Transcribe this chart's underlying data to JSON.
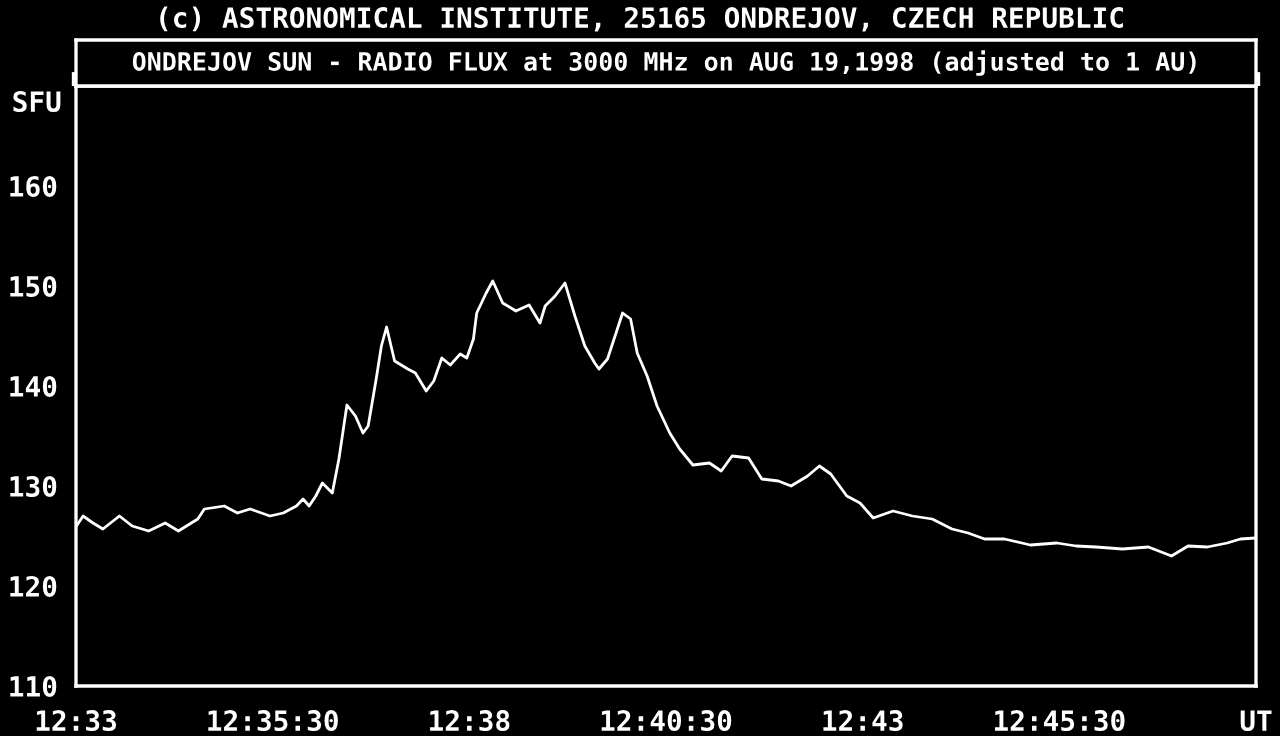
{
  "chart_data": {
    "type": "line",
    "title": "ONDREJOV SUN - RADIO FLUX at 3000 MHz on AUG 19,1998 (adjusted to 1 AU)",
    "annotations": [
      "(c) ASTRONOMICAL INSTITUTE, 25165 ONDREJOV, CZECH REPUBLIC"
    ],
    "ylabel": "SFU",
    "series": [
      {
        "color": "#ffffff",
        "x": [
          12.5501,
          12.5515,
          12.5536,
          12.5557,
          12.5592,
          12.5619,
          12.5654,
          12.5689,
          12.5717,
          12.5758,
          12.5772,
          12.5814,
          12.5842,
          12.5869,
          12.5911,
          12.5939,
          12.5967,
          12.5981,
          12.5994,
          12.6008,
          12.6022,
          12.6043,
          12.6057,
          12.6074,
          12.6092,
          12.6108,
          12.6119,
          12.6136,
          12.6147,
          12.6158,
          12.6175,
          12.6203,
          12.6219,
          12.6242,
          12.6258,
          12.6275,
          12.6293,
          12.6314,
          12.6328,
          12.6342,
          12.6349,
          12.6369,
          12.6383,
          12.6404,
          12.6432,
          12.646,
          12.6483,
          12.6494,
          12.6515,
          12.6536,
          12.6557,
          12.6578,
          12.6599,
          12.6608,
          12.6626,
          12.664,
          12.6658,
          12.6675,
          12.6689,
          12.671,
          12.6731,
          12.6758,
          12.6779,
          12.6807,
          12.6842,
          12.6867,
          12.689,
          12.6925,
          12.6953,
          12.6988,
          12.7015,
          12.705,
          12.7075,
          12.7099,
          12.7133,
          12.7161,
          12.7189,
          12.7231,
          12.7272,
          12.7314,
          12.7356,
          12.739,
          12.7425,
          12.7467,
          12.7522,
          12.7578,
          12.7619,
          12.7661,
          12.7717,
          12.7772,
          12.7821,
          12.7856,
          12.7897,
          12.7939,
          12.7967,
          12.7999
        ],
        "values": [
          126.0,
          127.0,
          126.3,
          125.7,
          127.0,
          126.0,
          125.5,
          126.3,
          125.5,
          126.7,
          127.7,
          128.0,
          127.3,
          127.7,
          127.0,
          127.3,
          128.0,
          128.7,
          128.0,
          129.0,
          130.3,
          129.3,
          132.7,
          138.1,
          137.0,
          135.3,
          136.0,
          140.7,
          144.0,
          145.9,
          142.5,
          141.7,
          141.3,
          139.5,
          140.5,
          142.8,
          142.1,
          143.2,
          142.8,
          144.7,
          147.3,
          149.3,
          150.5,
          148.3,
          147.5,
          148.1,
          146.3,
          148.0,
          149.0,
          150.3,
          147.0,
          144.0,
          142.3,
          141.7,
          142.7,
          144.7,
          147.3,
          146.7,
          143.3,
          141.0,
          138.0,
          135.3,
          133.7,
          132.1,
          132.3,
          131.5,
          133.0,
          132.8,
          130.7,
          130.5,
          130.0,
          131.0,
          132.0,
          131.2,
          129.0,
          128.3,
          126.8,
          127.5,
          127.0,
          126.7,
          125.7,
          125.3,
          124.7,
          124.7,
          124.1,
          124.3,
          124.0,
          123.9,
          123.7,
          123.9,
          123.0,
          124.0,
          123.9,
          124.3,
          124.7,
          124.8
        ]
      }
    ],
    "xlim": [
      12.55,
      12.8
    ],
    "xticks": [
      {
        "value": 12.55,
        "label": "12:33"
      },
      {
        "value": 12.591667,
        "label": "12:35:30"
      },
      {
        "value": 12.633333,
        "label": "12:38"
      },
      {
        "value": 12.675,
        "label": "12:40:30"
      },
      {
        "value": 12.716667,
        "label": "12:43"
      },
      {
        "value": 12.758333,
        "label": "12:45:30"
      },
      {
        "value": 12.8,
        "label": "UT"
      }
    ],
    "ylim": [
      110,
      170
    ],
    "yticks": [
      110,
      120,
      130,
      140,
      150,
      160
    ],
    "grid": false,
    "legend": false,
    "line_style": "solid",
    "marker": "none"
  }
}
